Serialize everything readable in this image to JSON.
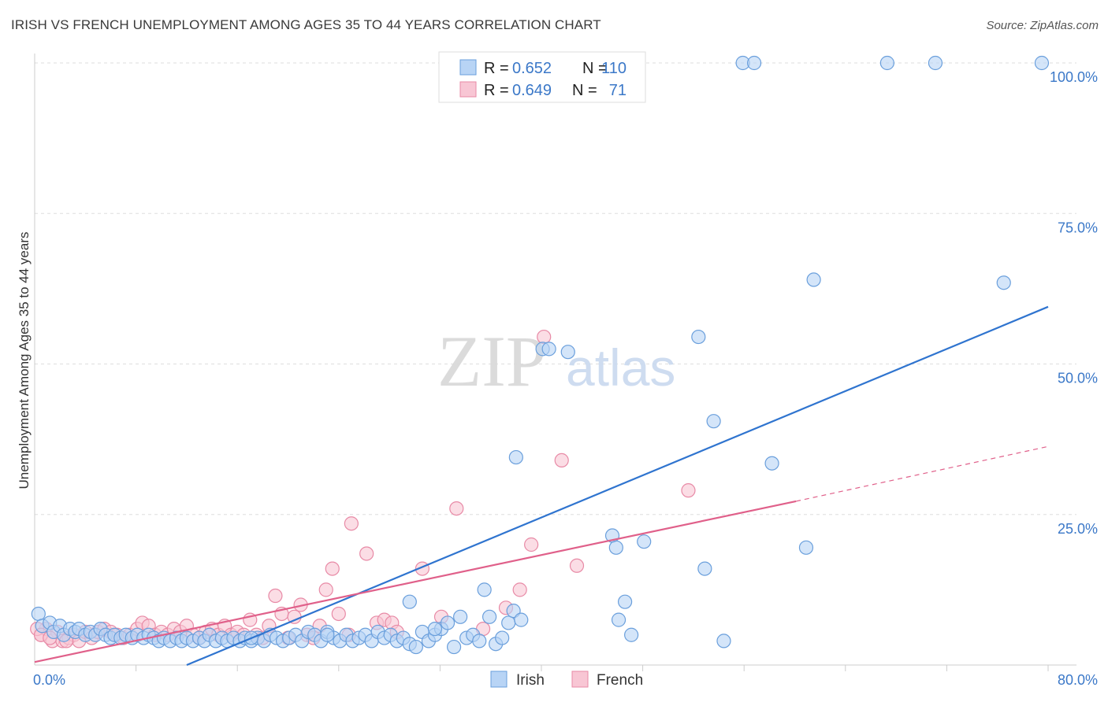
{
  "header": {
    "title": "IRISH VS FRENCH UNEMPLOYMENT AMONG AGES 35 TO 44 YEARS CORRELATION CHART",
    "source": "Source: ZipAtlas.com"
  },
  "watermark": {
    "zip": "ZIP",
    "atlas": "atlas"
  },
  "colors": {
    "irish_fill": "#b8d4f5",
    "irish_stroke": "#6a9fdc",
    "irish_line": "#2f74cf",
    "french_fill": "#f8c6d4",
    "french_stroke": "#e88aa6",
    "french_line": "#e0608a",
    "grid": "#dddddd",
    "tick_text": "#3b78c8"
  },
  "legend": {
    "r_label": "R =",
    "n_label": "N =",
    "rows": [
      {
        "name": "Irish",
        "r": "0.652",
        "n": "110"
      },
      {
        "name": "French",
        "r": "0.649",
        "n": "71"
      }
    ]
  },
  "chart_data": {
    "type": "scatter",
    "title": "IRISH VS FRENCH UNEMPLOYMENT AMONG AGES 35 TO 44 YEARS CORRELATION CHART",
    "xlabel": "",
    "ylabel": "Unemployment Among Ages 35 to 44 years",
    "xlim": [
      0,
      80
    ],
    "ylim": [
      0,
      100
    ],
    "x_tick_labels": [
      "0.0%",
      "80.0%"
    ],
    "y_ticks": [
      25,
      50,
      75,
      100
    ],
    "y_tick_labels": [
      "25.0%",
      "50.0%",
      "75.0%",
      "100.0%"
    ],
    "grid": true,
    "legend_position": "top-center",
    "series": [
      {
        "name": "Irish",
        "r": 0.652,
        "n": 110,
        "trend": {
          "x": [
            12,
            80
          ],
          "y": [
            0,
            59.5
          ]
        },
        "points": [
          [
            0.3,
            8.5
          ],
          [
            0.6,
            6.5
          ],
          [
            1.2,
            7
          ],
          [
            1.5,
            5.5
          ],
          [
            2,
            6.5
          ],
          [
            2.3,
            5
          ],
          [
            2.8,
            6
          ],
          [
            3.2,
            5.5
          ],
          [
            3.5,
            6
          ],
          [
            4,
            5
          ],
          [
            4.4,
            5.5
          ],
          [
            4.8,
            5
          ],
          [
            5.2,
            6
          ],
          [
            5.6,
            5
          ],
          [
            6,
            4.5
          ],
          [
            6.3,
            5
          ],
          [
            6.8,
            4.5
          ],
          [
            7.2,
            5
          ],
          [
            7.7,
            4.5
          ],
          [
            8.1,
            5
          ],
          [
            8.6,
            4.5
          ],
          [
            9,
            5
          ],
          [
            9.4,
            4.5
          ],
          [
            9.8,
            4
          ],
          [
            10.2,
            4.5
          ],
          [
            10.7,
            4
          ],
          [
            11.2,
            4.5
          ],
          [
            11.6,
            4
          ],
          [
            12,
            4.5
          ],
          [
            12.5,
            4
          ],
          [
            13,
            4.5
          ],
          [
            13.4,
            4
          ],
          [
            13.8,
            5
          ],
          [
            14.3,
            4
          ],
          [
            14.8,
            4.5
          ],
          [
            15.2,
            4
          ],
          [
            15.7,
            4.5
          ],
          [
            16.2,
            4
          ],
          [
            16.6,
            4.5
          ],
          [
            17.1,
            4
          ],
          [
            17.6,
            4.5
          ],
          [
            18.1,
            4
          ],
          [
            18.6,
            5
          ],
          [
            19.1,
            4.5
          ],
          [
            19.6,
            4
          ],
          [
            20.1,
            4.5
          ],
          [
            20.6,
            5
          ],
          [
            21.1,
            4
          ],
          [
            21.6,
            5.5
          ],
          [
            22.1,
            5
          ],
          [
            22.6,
            4
          ],
          [
            23.1,
            5.5
          ],
          [
            23.6,
            4.5
          ],
          [
            24.1,
            4
          ],
          [
            24.6,
            5
          ],
          [
            25.1,
            4
          ],
          [
            25.6,
            4.5
          ],
          [
            26.1,
            5
          ],
          [
            26.6,
            4
          ],
          [
            27.1,
            5.5
          ],
          [
            27.6,
            4.5
          ],
          [
            28.1,
            5
          ],
          [
            28.6,
            4
          ],
          [
            29.1,
            4.5
          ],
          [
            29.6,
            3.5
          ],
          [
            30.1,
            3
          ],
          [
            30.6,
            5.5
          ],
          [
            31.1,
            4
          ],
          [
            31.6,
            5
          ],
          [
            32.1,
            6
          ],
          [
            32.6,
            7
          ],
          [
            33.1,
            3
          ],
          [
            33.6,
            8
          ],
          [
            34.1,
            4.5
          ],
          [
            34.6,
            5
          ],
          [
            35.1,
            4
          ],
          [
            35.5,
            12.5
          ],
          [
            35.9,
            8
          ],
          [
            36.4,
            3.5
          ],
          [
            36.9,
            4.5
          ],
          [
            37.4,
            7
          ],
          [
            37.8,
            9
          ],
          [
            38,
            34.5
          ],
          [
            38.4,
            7.5
          ],
          [
            40.1,
            52.5
          ],
          [
            40.6,
            52.5
          ],
          [
            42.1,
            52
          ],
          [
            45.6,
            21.5
          ],
          [
            45.9,
            19.5
          ],
          [
            46.1,
            7.5
          ],
          [
            46.6,
            10.5
          ],
          [
            47.1,
            5
          ],
          [
            48.1,
            20.5
          ],
          [
            29.6,
            10.5
          ],
          [
            52.4,
            54.5
          ],
          [
            52.9,
            16
          ],
          [
            53.6,
            40.5
          ],
          [
            54.4,
            4
          ],
          [
            58.2,
            33.5
          ],
          [
            61.5,
            64
          ],
          [
            60.9,
            19.5
          ],
          [
            55.9,
            100
          ],
          [
            56.8,
            100
          ],
          [
            67.3,
            100
          ],
          [
            71.1,
            100
          ],
          [
            76.5,
            63.5
          ],
          [
            79.5,
            100
          ],
          [
            23.1,
            5
          ],
          [
            31.6,
            6
          ],
          [
            17.1,
            4.5
          ]
        ]
      },
      {
        "name": "French",
        "r": 0.649,
        "n": 71,
        "trend": {
          "x": [
            0,
            60.1
          ],
          "y": [
            0.5,
            27.2
          ]
        },
        "trend_dashed": {
          "x": [
            60.1,
            80
          ],
          "y": [
            27.2,
            36.3
          ]
        },
        "points": [
          [
            0.5,
            5
          ],
          [
            0.9,
            6
          ],
          [
            1.4,
            4
          ],
          [
            1.8,
            5.5
          ],
          [
            2.2,
            4
          ],
          [
            2.7,
            4.5
          ],
          [
            3.1,
            5
          ],
          [
            3.5,
            4
          ],
          [
            4,
            5.5
          ],
          [
            4.5,
            4.5
          ],
          [
            5,
            5.5
          ],
          [
            5.5,
            6
          ],
          [
            6,
            5.5
          ],
          [
            6.5,
            5
          ],
          [
            7,
            4.5
          ],
          [
            7.5,
            5
          ],
          [
            8.1,
            6
          ],
          [
            8.5,
            7
          ],
          [
            9,
            6.5
          ],
          [
            9.5,
            5
          ],
          [
            10,
            5.5
          ],
          [
            10.5,
            5
          ],
          [
            11,
            6
          ],
          [
            11.5,
            5.5
          ],
          [
            12,
            6.5
          ],
          [
            12.5,
            5
          ],
          [
            13,
            4.5
          ],
          [
            13.5,
            5.5
          ],
          [
            14,
            6
          ],
          [
            14.5,
            5
          ],
          [
            15,
            6.5
          ],
          [
            15.5,
            5
          ],
          [
            16,
            5.5
          ],
          [
            16.5,
            5
          ],
          [
            17,
            7.5
          ],
          [
            17.5,
            5
          ],
          [
            18,
            4.5
          ],
          [
            18.5,
            6.5
          ],
          [
            19,
            11.5
          ],
          [
            19.5,
            8.5
          ],
          [
            20,
            4.5
          ],
          [
            20.5,
            8
          ],
          [
            21,
            10
          ],
          [
            21.5,
            5
          ],
          [
            22,
            4.5
          ],
          [
            22.5,
            6.5
          ],
          [
            23,
            12.5
          ],
          [
            23.5,
            16
          ],
          [
            24,
            8.5
          ],
          [
            24.8,
            5
          ],
          [
            25,
            23.5
          ],
          [
            26.2,
            18.5
          ],
          [
            27,
            7
          ],
          [
            27.6,
            7.5
          ],
          [
            28.2,
            7
          ],
          [
            28.6,
            5.5
          ],
          [
            30.6,
            16
          ],
          [
            32.1,
            8
          ],
          [
            33.3,
            26
          ],
          [
            35.4,
            6
          ],
          [
            37.2,
            9.5
          ],
          [
            38.3,
            12.5
          ],
          [
            39.2,
            20
          ],
          [
            40.2,
            54.5
          ],
          [
            41.6,
            34
          ],
          [
            42.8,
            16.5
          ],
          [
            51.6,
            29
          ],
          [
            0.2,
            6
          ],
          [
            0.5,
            5
          ],
          [
            1.2,
            4.5
          ],
          [
            2.5,
            4
          ]
        ]
      }
    ]
  }
}
